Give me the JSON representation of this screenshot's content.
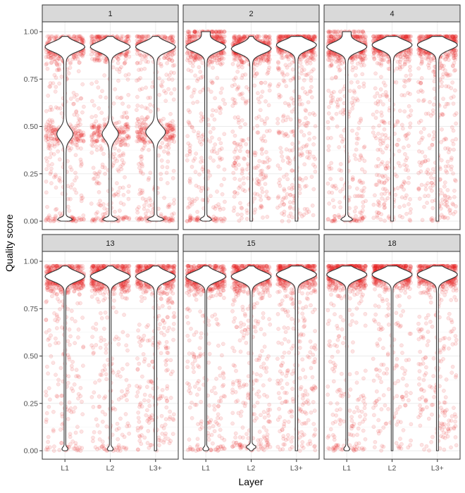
{
  "chart_data": {
    "type": "scatter",
    "overlay": "violin",
    "xlabel": "Layer",
    "ylabel": "Quality score",
    "ylim": [
      0,
      1
    ],
    "yticks": [
      "0.00",
      "0.25",
      "0.50",
      "0.75",
      "1.00"
    ],
    "categories": [
      "L1",
      "L2",
      "L3+"
    ],
    "point_color": "#e31a1c",
    "grid": true,
    "panels": [
      {
        "label": "1",
        "distributions": [
          {
            "category": "L1",
            "peaks": [
              [
                0.92,
                0.45
              ],
              [
                0.46,
                0.2
              ],
              [
                0.01,
                0.05
              ]
            ],
            "spread": 0.2
          },
          {
            "category": "L2",
            "peaks": [
              [
                0.92,
                0.45
              ],
              [
                0.46,
                0.2
              ],
              [
                0.01,
                0.05
              ]
            ],
            "spread": 0.2
          },
          {
            "category": "L3+",
            "peaks": [
              [
                0.92,
                0.4
              ],
              [
                0.47,
                0.22
              ],
              [
                0.01,
                0.05
              ]
            ],
            "spread": 0.2
          }
        ]
      },
      {
        "label": "2",
        "distributions": [
          {
            "category": "L1",
            "peaks": [
              [
                0.92,
                0.6
              ],
              [
                1.0,
                0.1
              ],
              [
                0.01,
                0.05
              ]
            ],
            "spread": 0.25
          },
          {
            "category": "L2",
            "peaks": [
              [
                0.91,
                0.6
              ]
            ],
            "spread": 0.3
          },
          {
            "category": "L3+",
            "peaks": [
              [
                0.93,
                0.6
              ]
            ],
            "spread": 0.3
          }
        ]
      },
      {
        "label": "4",
        "distributions": [
          {
            "category": "L1",
            "peaks": [
              [
                0.92,
                0.6
              ],
              [
                1.0,
                0.1
              ],
              [
                0.01,
                0.05
              ]
            ],
            "spread": 0.25
          },
          {
            "category": "L2",
            "peaks": [
              [
                0.93,
                0.6
              ]
            ],
            "spread": 0.3
          },
          {
            "category": "L3+",
            "peaks": [
              [
                0.93,
                0.6
              ]
            ],
            "spread": 0.3
          }
        ]
      },
      {
        "label": "13",
        "distributions": [
          {
            "category": "L1",
            "peaks": [
              [
                0.92,
                0.75
              ],
              [
                0.01,
                0.03
              ]
            ],
            "spread": 0.2
          },
          {
            "category": "L2",
            "peaks": [
              [
                0.92,
                0.75
              ],
              [
                0.01,
                0.03
              ]
            ],
            "spread": 0.2
          },
          {
            "category": "L3+",
            "peaks": [
              [
                0.92,
                0.65
              ]
            ],
            "spread": 0.3
          }
        ]
      },
      {
        "label": "15",
        "distributions": [
          {
            "category": "L1",
            "peaks": [
              [
                0.92,
                0.75
              ],
              [
                0.01,
                0.03
              ]
            ],
            "spread": 0.2
          },
          {
            "category": "L2",
            "peaks": [
              [
                0.92,
                0.7
              ],
              [
                0.02,
                0.05
              ]
            ],
            "spread": 0.25
          },
          {
            "category": "L3+",
            "peaks": [
              [
                0.93,
                0.65
              ]
            ],
            "spread": 0.3
          }
        ]
      },
      {
        "label": "18",
        "distributions": [
          {
            "category": "L1",
            "peaks": [
              [
                0.93,
                0.75
              ],
              [
                0.01,
                0.03
              ]
            ],
            "spread": 0.2
          },
          {
            "category": "L2",
            "peaks": [
              [
                0.93,
                0.75
              ]
            ],
            "spread": 0.2
          },
          {
            "category": "L3+",
            "peaks": [
              [
                0.93,
                0.7
              ]
            ],
            "spread": 0.25
          }
        ]
      }
    ]
  }
}
